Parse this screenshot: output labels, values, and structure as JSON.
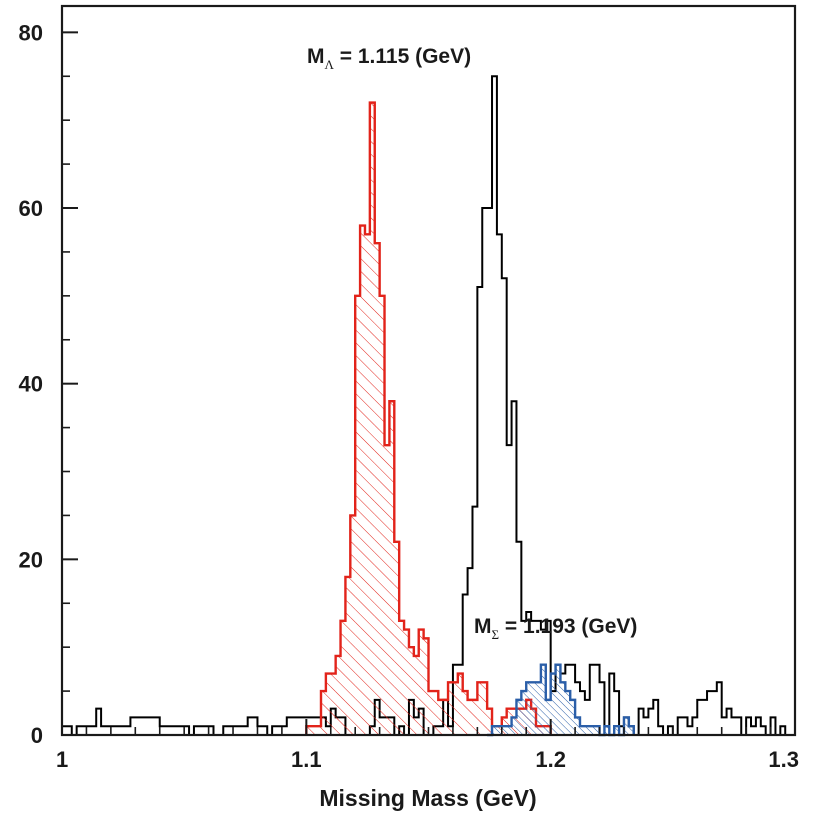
{
  "chart_data": {
    "type": "histogram",
    "xlabel": "Missing Mass (GeV)",
    "ylabel": "",
    "xlim": [
      1.0,
      1.3
    ],
    "ylim": [
      0,
      83
    ],
    "bin_width": 0.002,
    "x_ticks": [
      "1",
      "1.1",
      "1.2",
      "1.3"
    ],
    "y_ticks": [
      "0",
      "20",
      "40",
      "60",
      "80"
    ],
    "grid": false,
    "annotations": [
      {
        "id": "lambda",
        "prefix": "M",
        "subscript": "Λ",
        "text": " = 1.115 (GeV)",
        "near_x": 1.115
      },
      {
        "id": "sigma",
        "prefix": "M",
        "subscript": "Σ",
        "text": " = 1.193 (GeV)",
        "near_x": 1.193
      }
    ],
    "series": [
      {
        "name": "",
        "role": "all events",
        "color": "#000000",
        "fill": "none",
        "bin_start": 1.0,
        "values": [
          1,
          1,
          0,
          1,
          1,
          1,
          1,
          3,
          1,
          1,
          1,
          1,
          1,
          1,
          2,
          2,
          2,
          2,
          2,
          2,
          1,
          1,
          1,
          1,
          1,
          1,
          0,
          1,
          1,
          1,
          1,
          0,
          0,
          1,
          1,
          1,
          1,
          1,
          2,
          2,
          1,
          1,
          0,
          1,
          1,
          1,
          2,
          2,
          2,
          2,
          2,
          2,
          2,
          2,
          1,
          3,
          2,
          2,
          0,
          0,
          0,
          0,
          0,
          1,
          4,
          2,
          2,
          2,
          0,
          1,
          0,
          4,
          2,
          3,
          0,
          0,
          1,
          1,
          4,
          1,
          8,
          8,
          16,
          19,
          26,
          51,
          60,
          60,
          75,
          57,
          52,
          33,
          38,
          22,
          13,
          14,
          13,
          13,
          12,
          13,
          5,
          8,
          7,
          8,
          8,
          6,
          5,
          4,
          8,
          8,
          6,
          1,
          7,
          5,
          1,
          2,
          1,
          0,
          3,
          2,
          3,
          4,
          1,
          0,
          1,
          0,
          2,
          2,
          1,
          2,
          4,
          4,
          5,
          5,
          6,
          2,
          3,
          2,
          2,
          0,
          2,
          1,
          2,
          1,
          0,
          2,
          0,
          1,
          0,
          0
        ]
      },
      {
        "name": "",
        "role": "Lambda selection",
        "color": "#e2231a",
        "fill": "hatched",
        "bin_start": 1.1,
        "values": [
          1,
          1,
          1,
          5,
          7,
          7,
          9,
          13,
          18,
          25,
          50,
          58,
          57,
          72,
          56,
          50,
          33,
          38,
          22,
          13,
          12,
          10,
          9,
          12,
          11,
          5,
          5,
          4,
          4,
          6,
          6,
          7,
          5,
          4,
          4,
          6,
          6,
          3,
          1,
          1,
          2,
          3,
          3,
          3,
          3,
          4,
          3,
          1,
          1,
          1
        ]
      },
      {
        "name": "",
        "role": "Sigma selection",
        "color": "#2a5ea8",
        "fill": "hatched",
        "bin_start": 1.174,
        "values": [
          0,
          1,
          1,
          1,
          1,
          2,
          4,
          5,
          6,
          6,
          6,
          8,
          4,
          7,
          8,
          6,
          5,
          4,
          2,
          1,
          1,
          1,
          1,
          0,
          1,
          0,
          1,
          0,
          2,
          1
        ]
      }
    ]
  }
}
